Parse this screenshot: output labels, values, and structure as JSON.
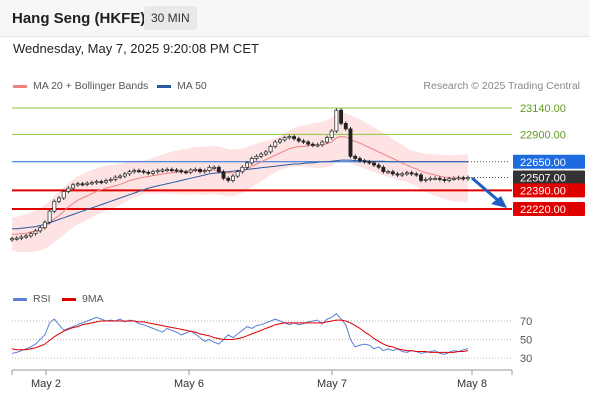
{
  "header": {
    "title": "Hang Seng (HKFE)",
    "interval": "30 MIN",
    "datetime": "Wednesday, May 7, 2025 9:20:08 PM CET"
  },
  "legend": {
    "ma20": {
      "label": "MA 20 + Bollinger Bands",
      "color": "#f08080"
    },
    "ma50": {
      "label": "MA 50",
      "color": "#2c5aa0"
    },
    "credit": "Research © 2025 Trading Central"
  },
  "rsi_legend": {
    "rsi": {
      "label": "RSI",
      "color": "#5b7fd6"
    },
    "ma9": {
      "label": "9MA",
      "color": "#e00000"
    }
  },
  "chart_data": [
    {
      "type": "candlestick",
      "ylim": [
        21900,
        23250
      ],
      "x_ticks": [
        "May 2",
        "May 6",
        "May 7",
        "May 8"
      ],
      "levels": [
        {
          "value": 23140.0,
          "label": "23140.00",
          "kind": "resistance",
          "color": "#8cc63f"
        },
        {
          "value": 22900.0,
          "label": "22900.00",
          "kind": "resistance",
          "color": "#8cc63f"
        },
        {
          "value": 22650.0,
          "label": "22650.00",
          "kind": "pivot",
          "color": "#1e6be0"
        },
        {
          "value": 22507.0,
          "label": "22507.00",
          "kind": "last",
          "color": "#333333"
        },
        {
          "value": 22390.0,
          "label": "22390.00",
          "kind": "support",
          "color": "#e00000"
        },
        {
          "value": 22220.0,
          "label": "22220.00",
          "kind": "support",
          "color": "#e00000"
        }
      ],
      "close": [
        21950,
        21955,
        21965,
        21975,
        21995,
        22020,
        22050,
        22100,
        22200,
        22290,
        22320,
        22380,
        22410,
        22440,
        22450,
        22445,
        22455,
        22460,
        22470,
        22465,
        22480,
        22490,
        22510,
        22520,
        22540,
        22560,
        22570,
        22565,
        22555,
        22545,
        22560,
        22570,
        22575,
        22580,
        22575,
        22570,
        22560,
        22555,
        22575,
        22580,
        22560,
        22570,
        22600,
        22600,
        22560,
        22500,
        22480,
        22520,
        22560,
        22600,
        22640,
        22680,
        22700,
        22720,
        22740,
        22790,
        22830,
        22850,
        22870,
        22880,
        22860,
        22840,
        22830,
        22810,
        22800,
        22805,
        22830,
        22870,
        22930,
        23120,
        23000,
        22950,
        22700,
        22680,
        22660,
        22650,
        22640,
        22620,
        22600,
        22560,
        22560,
        22540,
        22530,
        22540,
        22550,
        22540,
        22530,
        22480,
        22490,
        22500,
        22500,
        22490,
        22480,
        22495,
        22500,
        22505,
        22495,
        22507
      ],
      "ma20": [
        21990,
        21990,
        21995,
        22000,
        22010,
        22020,
        22035,
        22055,
        22090,
        22130,
        22160,
        22200,
        22240,
        22270,
        22300,
        22320,
        22340,
        22360,
        22380,
        22395,
        22410,
        22420,
        22430,
        22445,
        22460,
        22480,
        22490,
        22500,
        22510,
        22515,
        22525,
        22530,
        22540,
        22545,
        22550,
        22555,
        22560,
        22560,
        22565,
        22570,
        22570,
        22570,
        22575,
        22575,
        22570,
        22560,
        22550,
        22550,
        22560,
        22570,
        22590,
        22610,
        22630,
        22650,
        22670,
        22690,
        22710,
        22730,
        22750,
        22770,
        22780,
        22790,
        22790,
        22795,
        22800,
        22800,
        22805,
        22815,
        22830,
        22870,
        22880,
        22875,
        22855,
        22835,
        22820,
        22800,
        22780,
        22760,
        22740,
        22720,
        22700,
        22680,
        22660,
        22640,
        22620,
        22600,
        22585,
        22565,
        22550,
        22540,
        22530,
        22520,
        22510,
        22505,
        22500,
        22500,
        22500,
        22500
      ],
      "ma50": [
        22040,
        22040,
        22045,
        22050,
        22055,
        22060,
        22070,
        22080,
        22095,
        22110,
        22125,
        22140,
        22155,
        22170,
        22185,
        22200,
        22215,
        22230,
        22245,
        22260,
        22275,
        22290,
        22305,
        22320,
        22335,
        22350,
        22365,
        22380,
        22395,
        22410,
        22420,
        22430,
        22440,
        22450,
        22460,
        22470,
        22480,
        22490,
        22500,
        22510,
        22520,
        22530,
        22540,
        22545,
        22550,
        22555,
        22560,
        22565,
        22570,
        22575,
        22580,
        22585,
        22590,
        22595,
        22600,
        22605,
        22610,
        22615,
        22620,
        22625,
        22630,
        22630,
        22635,
        22640,
        22640,
        22645,
        22650,
        22650,
        22655,
        22660,
        22665,
        22665,
        22665,
        22660,
        22660,
        22660,
        22655,
        22655,
        22655,
        22655,
        22650,
        22650,
        22650,
        22650,
        22650,
        22650,
        22650,
        22650,
        22650,
        22650,
        22650,
        22650,
        22650,
        22650,
        22650,
        22650,
        22650,
        22650
      ]
    },
    {
      "type": "line",
      "title": "RSI",
      "ylim": [
        20,
        80
      ],
      "y_ticks": [
        70,
        50,
        30
      ],
      "series": [
        {
          "name": "RSI",
          "color": "#5b7fd6",
          "values": [
            35,
            36,
            38,
            40,
            42,
            45,
            50,
            55,
            68,
            72,
            66,
            60,
            62,
            64,
            66,
            68,
            70,
            72,
            74,
            72,
            70,
            71,
            70,
            72,
            69,
            71,
            70,
            67,
            66,
            64,
            62,
            60,
            58,
            62,
            60,
            58,
            55,
            57,
            59,
            56,
            52,
            48,
            50,
            47,
            45,
            50,
            55,
            52,
            56,
            60,
            64,
            62,
            65,
            66,
            68,
            70,
            72,
            70,
            68,
            66,
            68,
            66,
            67,
            69,
            70,
            71,
            67,
            72,
            74,
            78,
            72,
            66,
            50,
            42,
            44,
            45,
            44,
            40,
            42,
            38,
            40,
            38,
            40,
            37,
            36,
            38,
            37,
            35,
            36,
            37,
            38,
            35,
            34,
            36,
            38,
            37,
            39,
            40
          ]
        },
        {
          "name": "9MA",
          "color": "#e00000",
          "values": [
            40,
            39,
            39,
            39,
            40,
            41,
            43,
            45,
            49,
            53,
            56,
            59,
            61,
            63,
            64,
            66,
            67,
            68,
            69,
            70,
            70,
            70,
            70,
            70,
            70,
            70,
            70,
            69,
            69,
            68,
            67,
            66,
            65,
            64,
            63,
            62,
            61,
            60,
            59,
            58,
            56,
            55,
            54,
            52,
            51,
            50,
            50,
            50,
            51,
            52,
            54,
            56,
            58,
            60,
            62,
            64,
            66,
            67,
            68,
            68,
            68,
            68,
            68,
            68,
            68,
            68,
            68,
            69,
            70,
            71,
            71,
            70,
            68,
            65,
            62,
            58,
            55,
            51,
            48,
            45,
            43,
            42,
            40,
            39,
            38,
            38,
            37,
            37,
            37,
            36,
            36,
            36,
            36,
            36,
            36,
            37,
            37,
            38
          ]
        }
      ]
    }
  ]
}
